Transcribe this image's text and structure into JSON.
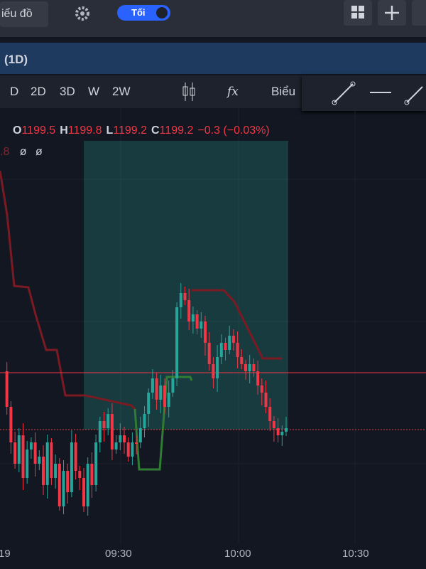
{
  "topbar": {
    "chart_button": "iểu đồ",
    "theme_toggle": "Tối"
  },
  "symbol_bar": {
    "interval": "(1D)"
  },
  "toolbar": {
    "ranges": [
      "D",
      "2D",
      "3D",
      "W",
      "2W"
    ],
    "chart_type": "Biểu"
  },
  "legend": {
    "open_label": "O",
    "open": "1199.5",
    "high_label": "H",
    "high": "1199.8",
    "low_label": "L",
    "low": "1199.2",
    "close_label": "C",
    "close": "1199.2",
    "change": "−0.3 (−0.03%)",
    "indicator_value": ".8",
    "indicator_a": "ø",
    "indicator_b": "ø"
  },
  "time_axis": [
    "19",
    "09:30",
    "10:00",
    "10:30"
  ]
}
